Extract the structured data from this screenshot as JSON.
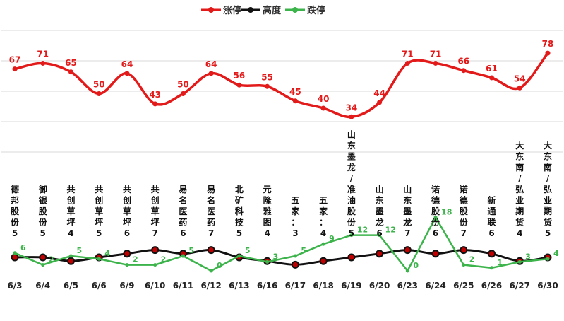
{
  "chart_data": {
    "type": "line",
    "title": "",
    "xlabel": "",
    "ylabel": "",
    "legend": {
      "position": "top",
      "entries": [
        "涨停",
        "高度",
        "跌停"
      ]
    },
    "categories": [
      "6/3",
      "6/4",
      "6/5",
      "6/6",
      "6/9",
      "6/10",
      "6/11",
      "6/12",
      "6/13",
      "6/16",
      "6/17",
      "6/18",
      "6/19",
      "6/20",
      "6/23",
      "6/24",
      "6/25",
      "6/26",
      "6/27",
      "6/30"
    ],
    "series": [
      {
        "name": "涨停",
        "color": "#e31a1a",
        "values": [
          67,
          71,
          65,
          50,
          64,
          43,
          50,
          64,
          56,
          55,
          45,
          40,
          34,
          44,
          71,
          71,
          66,
          61,
          54,
          78
        ]
      },
      {
        "name": "高度",
        "color": "#111111",
        "values": [
          5,
          5,
          4,
          5,
          6,
          7,
          6,
          7,
          5,
          4,
          3,
          4,
          5,
          6,
          7,
          6,
          7,
          6,
          4,
          5
        ],
        "point_labels": [
          "德邦股份",
          "御银股份",
          "共创草坪",
          "共创草坪",
          "共创草坪",
          "共创草坪",
          "易名医药",
          "易名医药",
          "北矿科技",
          "元隆雅图",
          "五家：",
          "五家：",
          "山东墨龙/准油股份",
          "山东墨龙",
          "山东墨龙",
          "诺德股份",
          "诺德股份",
          "新通联",
          "大东南/弘业期货",
          "大东南/弘业期货"
        ]
      },
      {
        "name": "跌停",
        "color": "#3cb44b",
        "values": [
          6,
          2,
          5,
          4,
          2,
          2,
          5,
          0,
          5,
          3,
          5,
          9,
          12,
          12,
          0,
          18,
          2,
          1,
          3,
          4
        ]
      }
    ],
    "grid": true
  }
}
